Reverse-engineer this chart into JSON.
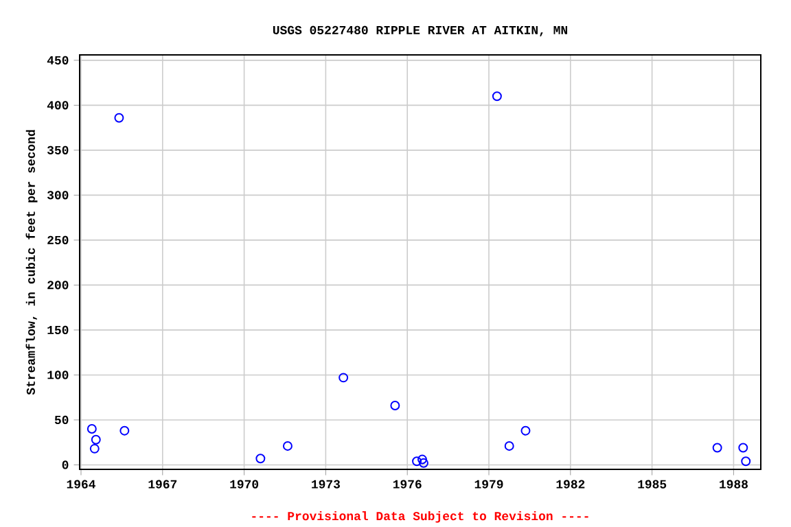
{
  "chart_data": {
    "type": "scatter",
    "title": "USGS 05227480 RIPPLE RIVER AT AITKIN, MN",
    "ylabel": "Streamflow, in cubic feet per second",
    "annotations": [
      "---- Provisional Data Subject to Revision ----"
    ],
    "x": [
      1964.4,
      1964.55,
      1964.5,
      1965.4,
      1965.6,
      1970.6,
      1971.6,
      1973.65,
      1975.55,
      1976.35,
      1976.55,
      1976.6,
      1979.3,
      1979.75,
      1980.35,
      1987.4,
      1988.35,
      1988.45
    ],
    "values": [
      40,
      28,
      18,
      386,
      38,
      7,
      21,
      97,
      66,
      4,
      6,
      2,
      410,
      21,
      38,
      19,
      19,
      4
    ],
    "color": "#0000ff",
    "marker": "circle",
    "grid": true,
    "xlim": [
      1963.95,
      1989.0
    ],
    "xticks": [
      1964,
      1967,
      1970,
      1973,
      1976,
      1979,
      1982,
      1985,
      1988
    ],
    "ylim": [
      -5,
      456
    ],
    "yticks": [
      0,
      50,
      100,
      150,
      200,
      250,
      300,
      350,
      400,
      450
    ]
  }
}
